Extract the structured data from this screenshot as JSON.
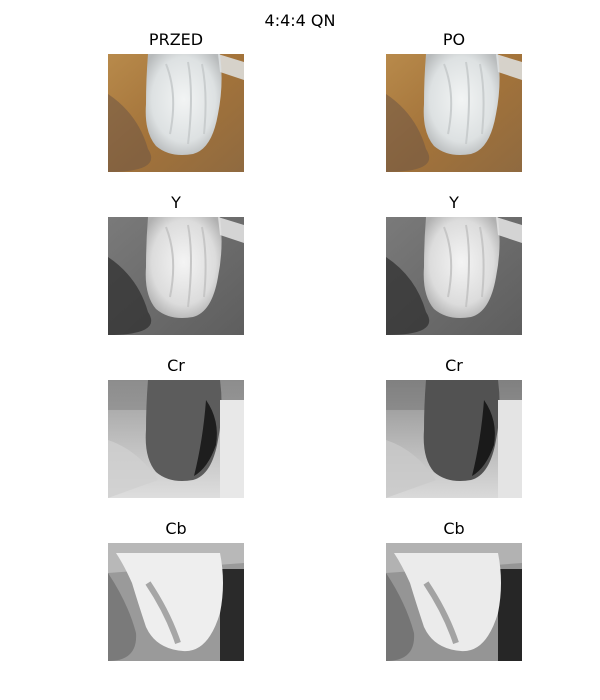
{
  "figure": {
    "title": "4:4:4 QN",
    "panels": [
      {
        "row": 0,
        "col": 0,
        "title": "PRZED",
        "kind": "rgb"
      },
      {
        "row": 0,
        "col": 1,
        "title": "PO",
        "kind": "rgb"
      },
      {
        "row": 1,
        "col": 0,
        "title": "Y",
        "kind": "y"
      },
      {
        "row": 1,
        "col": 1,
        "title": "Y",
        "kind": "y"
      },
      {
        "row": 2,
        "col": 0,
        "title": "Cr",
        "kind": "cr"
      },
      {
        "row": 2,
        "col": 1,
        "title": "Cr",
        "kind": "cr"
      },
      {
        "row": 3,
        "col": 0,
        "title": "Cb",
        "kind": "cb"
      },
      {
        "row": 3,
        "col": 1,
        "title": "Cb",
        "kind": "cb"
      }
    ]
  },
  "colors": {
    "rgb_background": "#a97a3e",
    "paw": "#e9ecec",
    "y_background": "#707070",
    "cr_background": "#cfcfcf",
    "cb_background": "#9a9a9a"
  }
}
